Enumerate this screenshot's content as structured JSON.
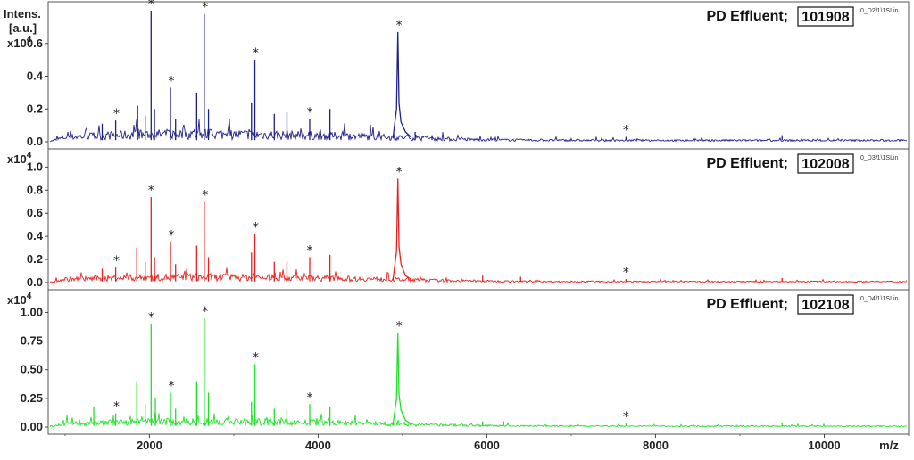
{
  "y_label_line1": "Intens.",
  "y_label_line2": "[a.u.]",
  "x_unit": "m/z",
  "x_ticks": [
    2000,
    4000,
    6000,
    8000,
    10000
  ],
  "chart_data": [
    {
      "type": "line",
      "title": "PD Effluent;",
      "title_boxed": "101908",
      "file_label": "0_D2\\1\\1SLin",
      "color": "#1f1f8a",
      "y_scale_label": "x10",
      "y_scale_exp": "4",
      "ylim": [
        -0.05,
        0.8
      ],
      "yticks": [
        "0.0",
        "0.2",
        "0.4",
        "0.6"
      ],
      "ytick_values": [
        0.0,
        0.2,
        0.4,
        0.6
      ],
      "xlim": [
        800,
        11000
      ],
      "peaks": [
        {
          "x": 1440,
          "y": 0.11
        },
        {
          "x": 1600,
          "y": 0.13
        },
        {
          "x": 1860,
          "y": 0.22
        },
        {
          "x": 1950,
          "y": 0.16
        },
        {
          "x": 2020,
          "y": 0.8
        },
        {
          "x": 2060,
          "y": 0.2
        },
        {
          "x": 2250,
          "y": 0.33
        },
        {
          "x": 2310,
          "y": 0.14
        },
        {
          "x": 2560,
          "y": 0.3
        },
        {
          "x": 2650,
          "y": 0.78
        },
        {
          "x": 2700,
          "y": 0.2
        },
        {
          "x": 3210,
          "y": 0.24
        },
        {
          "x": 3250,
          "y": 0.5
        },
        {
          "x": 3480,
          "y": 0.17
        },
        {
          "x": 3630,
          "y": 0.18
        },
        {
          "x": 3900,
          "y": 0.14
        },
        {
          "x": 4140,
          "y": 0.2
        },
        {
          "x": 4950,
          "y": 0.67
        },
        {
          "x": 5150,
          "y": 0.06
        },
        {
          "x": 5350,
          "y": 0.04
        },
        {
          "x": 7650,
          "y": 0.03
        },
        {
          "x": 9500,
          "y": 0.04
        }
      ],
      "stars_x": [
        1610,
        2020,
        2260,
        2660,
        3260,
        3900,
        4960,
        7650
      ]
    },
    {
      "type": "line",
      "title": "PD Effluent;",
      "title_boxed": "102008",
      "file_label": "0_D3\\1\\1SLin",
      "color": "#e8211f",
      "y_scale_label": "x10",
      "y_scale_exp": "4",
      "ylim": [
        -0.05,
        1.08
      ],
      "yticks": [
        "0.0",
        "0.2",
        "0.4",
        "0.6",
        "0.8",
        "1.0"
      ],
      "ytick_values": [
        0.0,
        0.2,
        0.4,
        0.6,
        0.8,
        1.0
      ],
      "xlim": [
        800,
        11000
      ],
      "peaks": [
        {
          "x": 1440,
          "y": 0.12
        },
        {
          "x": 1600,
          "y": 0.13
        },
        {
          "x": 1850,
          "y": 0.3
        },
        {
          "x": 1950,
          "y": 0.18
        },
        {
          "x": 2020,
          "y": 0.74
        },
        {
          "x": 2060,
          "y": 0.22
        },
        {
          "x": 2250,
          "y": 0.35
        },
        {
          "x": 2310,
          "y": 0.16
        },
        {
          "x": 2560,
          "y": 0.32
        },
        {
          "x": 2650,
          "y": 0.7
        },
        {
          "x": 2700,
          "y": 0.22
        },
        {
          "x": 3210,
          "y": 0.26
        },
        {
          "x": 3250,
          "y": 0.42
        },
        {
          "x": 3480,
          "y": 0.18
        },
        {
          "x": 3630,
          "y": 0.18
        },
        {
          "x": 3900,
          "y": 0.22
        },
        {
          "x": 4140,
          "y": 0.24
        },
        {
          "x": 4950,
          "y": 0.9
        },
        {
          "x": 5950,
          "y": 0.06
        },
        {
          "x": 6400,
          "y": 0.05
        },
        {
          "x": 7650,
          "y": 0.03
        },
        {
          "x": 9500,
          "y": 0.04
        }
      ],
      "stars_x": [
        1610,
        2020,
        2260,
        2660,
        3260,
        3900,
        4960,
        7650
      ]
    },
    {
      "type": "line",
      "title": "PD Effluent;",
      "title_boxed": "102108",
      "file_label": "0_D4\\1\\1SLin",
      "color": "#22e02a",
      "y_scale_label": "x10",
      "y_scale_exp": "4",
      "ylim": [
        -0.05,
        1.12
      ],
      "yticks": [
        "0.00",
        "0.25",
        "0.50",
        "0.75",
        "1.00"
      ],
      "ytick_values": [
        0.0,
        0.25,
        0.5,
        0.75,
        1.0
      ],
      "xlim": [
        800,
        11000
      ],
      "peaks": [
        {
          "x": 1340,
          "y": 0.18
        },
        {
          "x": 1600,
          "y": 0.12
        },
        {
          "x": 1850,
          "y": 0.4
        },
        {
          "x": 1950,
          "y": 0.2
        },
        {
          "x": 2020,
          "y": 0.9
        },
        {
          "x": 2070,
          "y": 0.25
        },
        {
          "x": 2250,
          "y": 0.3
        },
        {
          "x": 2310,
          "y": 0.16
        },
        {
          "x": 2560,
          "y": 0.4
        },
        {
          "x": 2650,
          "y": 0.95
        },
        {
          "x": 2700,
          "y": 0.3
        },
        {
          "x": 3210,
          "y": 0.22
        },
        {
          "x": 3250,
          "y": 0.55
        },
        {
          "x": 3480,
          "y": 0.16
        },
        {
          "x": 3630,
          "y": 0.15
        },
        {
          "x": 3900,
          "y": 0.2
        },
        {
          "x": 4140,
          "y": 0.18
        },
        {
          "x": 4950,
          "y": 0.82
        },
        {
          "x": 5950,
          "y": 0.05
        },
        {
          "x": 6200,
          "y": 0.05
        },
        {
          "x": 7650,
          "y": 0.03
        },
        {
          "x": 9500,
          "y": 0.04
        }
      ],
      "stars_x": [
        1610,
        2020,
        2260,
        2660,
        3260,
        3900,
        4960,
        7650
      ]
    }
  ]
}
